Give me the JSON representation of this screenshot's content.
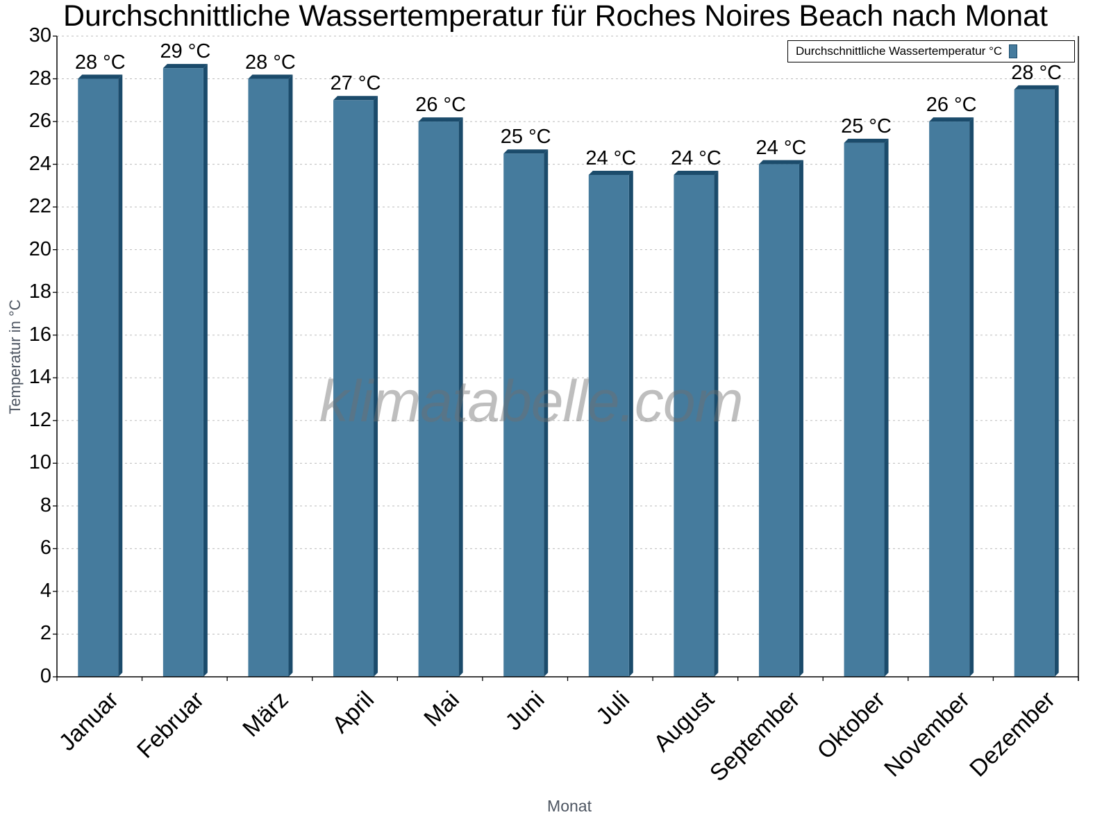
{
  "chart_data": {
    "type": "bar",
    "title": "Durchschnittliche Wassertemperatur für Roches Noires Beach nach Monat",
    "xlabel": "Monat",
    "ylabel": "Temperatur in °C",
    "ylim": [
      0,
      30
    ],
    "yticks": [
      0,
      2,
      4,
      6,
      8,
      10,
      12,
      14,
      16,
      18,
      20,
      22,
      24,
      26,
      28,
      30
    ],
    "grid": "horizontal dotted",
    "legend_position": "top-right",
    "categories": [
      "Januar",
      "Februar",
      "März",
      "April",
      "Mai",
      "Juni",
      "Juli",
      "August",
      "September",
      "Oktober",
      "November",
      "Dezember"
    ],
    "series": [
      {
        "name": "Durchschnittliche Wassertemperatur °C",
        "color": "#457b9d",
        "values": [
          28,
          28.5,
          28,
          27,
          26,
          24.5,
          23.5,
          23.5,
          24,
          25,
          26,
          27.5
        ],
        "data_labels": [
          "28 °C",
          "29 °C",
          "28 °C",
          "27 °C",
          "26 °C",
          "25 °C",
          "24 °C",
          "24 °C",
          "24 °C",
          "25 °C",
          "26 °C",
          "28 °C"
        ]
      }
    ],
    "watermark": "klimatabelle.com"
  },
  "colors": {
    "bar_front": "#457b9d",
    "bar_side": "#1b4b6b",
    "grid": "#bbbbbb",
    "axis_label": "#4d5561"
  }
}
